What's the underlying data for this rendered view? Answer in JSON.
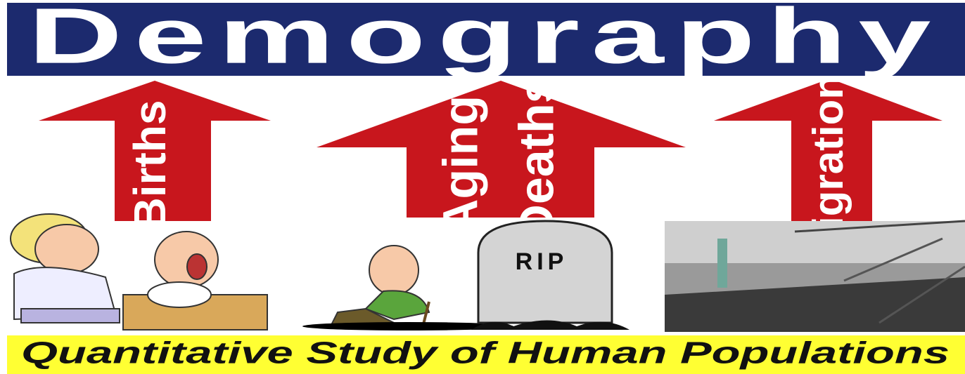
{
  "header": {
    "title": "Demography"
  },
  "arrows": [
    {
      "labels": [
        "Births"
      ]
    },
    {
      "labels": [
        "Aging",
        "Deaths"
      ]
    },
    {
      "labels": [
        "Migration"
      ]
    }
  ],
  "tombstone": {
    "label": "RIP"
  },
  "footer": {
    "text": "Quantitative Study of Human Populations"
  }
}
